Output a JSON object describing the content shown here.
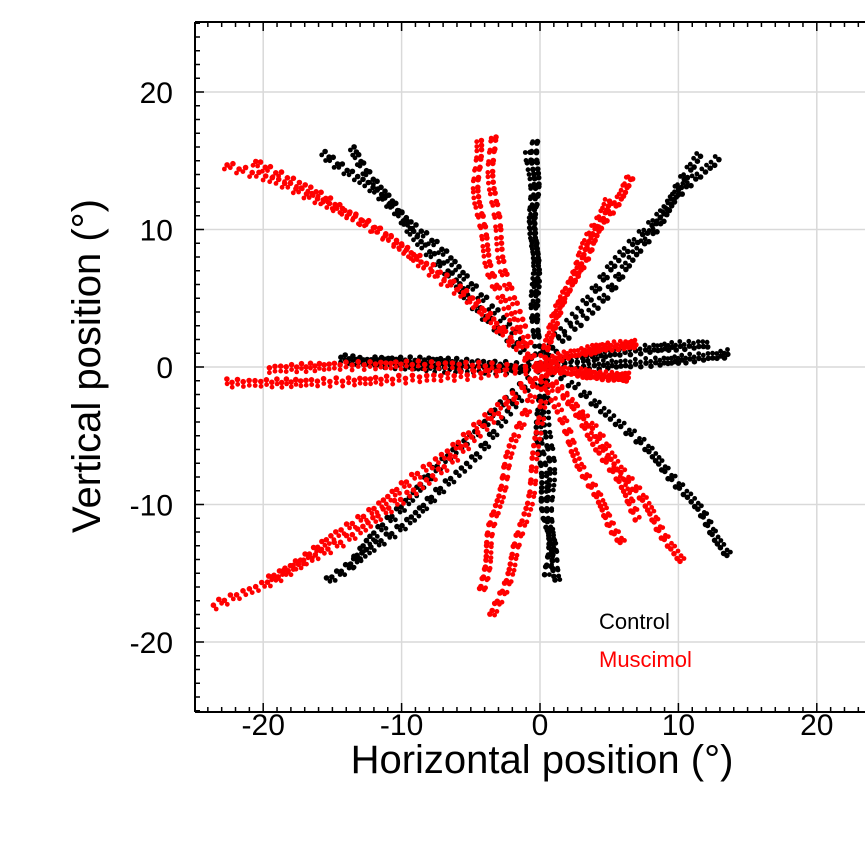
{
  "chart_data": {
    "type": "scatter",
    "xlabel": "Horizontal position (°)",
    "ylabel": "Vertical position (°)",
    "xlim": [
      -25,
      24
    ],
    "ylim": [
      -25,
      25
    ],
    "xticks": [
      -20,
      -10,
      0,
      10,
      20
    ],
    "yticks": [
      -20,
      -10,
      0,
      10,
      20
    ],
    "xtick_labels": [
      "-20",
      "-10",
      "0",
      "10",
      "20"
    ],
    "ytick_labels": [
      "-20",
      "-10",
      "0",
      "10",
      "20"
    ],
    "grid": true,
    "legend": "bottom-right (inside)",
    "series": [
      {
        "name": "Control",
        "color": "#000000",
        "trajectories": [
          {
            "end": [
              -15.5,
              15.6
            ],
            "bend": -1.0,
            "n": 45
          },
          {
            "end": [
              -13.5,
              16.0
            ],
            "bend": 0.6,
            "n": 45
          },
          {
            "end": [
              -0.1,
              16.5
            ],
            "bend": 0.2,
            "n": 40
          },
          {
            "end": [
              -0.6,
              15.5
            ],
            "bend": -0.1,
            "n": 35
          },
          {
            "end": [
              11.5,
              15.3
            ],
            "bend": -0.8,
            "n": 40
          },
          {
            "end": [
              12.8,
              15.0
            ],
            "bend": 0.6,
            "n": 40
          },
          {
            "end": [
              13.5,
              0.8
            ],
            "bend": -0.3,
            "n": 40
          },
          {
            "end": [
              12.0,
              1.5
            ],
            "bend": 0.2,
            "n": 35
          },
          {
            "end": [
              13.5,
              -13.8
            ],
            "bend": 1.2,
            "n": 45
          },
          {
            "end": [
              1.2,
              -15.5
            ],
            "bend": -0.6,
            "n": 40
          },
          {
            "end": [
              0.4,
              -15.0
            ],
            "bend": 0.4,
            "n": 35
          },
          {
            "end": [
              -15.5,
              -15.4
            ],
            "bend": 1.2,
            "n": 45
          },
          {
            "end": [
              -13.8,
              -14.2
            ],
            "bend": -0.3,
            "n": 40
          },
          {
            "end": [
              -14.5,
              0.8
            ],
            "bend": 0.3,
            "n": 40
          },
          {
            "end": [
              -12.0,
              0.6
            ],
            "bend": -0.2,
            "n": 35
          }
        ]
      },
      {
        "name": "Muscimol",
        "color": "#ff0000",
        "trajectories": [
          {
            "end": [
              -22.5,
              14.8
            ],
            "bend": -2.0,
            "n": 50
          },
          {
            "end": [
              -20.5,
              15.0
            ],
            "bend": -1.2,
            "n": 50
          },
          {
            "end": [
              -4.3,
              16.5
            ],
            "bend": 1.5,
            "n": 40
          },
          {
            "end": [
              -3.3,
              16.8
            ],
            "bend": 1.0,
            "n": 35
          },
          {
            "end": [
              6.8,
              13.8
            ],
            "bend": 0.5,
            "n": 40
          },
          {
            "end": [
              5.0,
              12.0
            ],
            "bend": 0.2,
            "n": 35
          },
          {
            "end": [
              7.0,
              1.5
            ],
            "bend": 0.3,
            "n": 35
          },
          {
            "end": [
              6.5,
              -0.9
            ],
            "bend": -0.2,
            "n": 35
          },
          {
            "end": [
              10.0,
              -14.2
            ],
            "bend": 0.4,
            "n": 40
          },
          {
            "end": [
              5.8,
              -12.8
            ],
            "bend": -0.4,
            "n": 35
          },
          {
            "end": [
              7.0,
              -11.0
            ],
            "bend": 0.3,
            "n": 30
          },
          {
            "end": [
              -4.3,
              -16.2
            ],
            "bend": -0.6,
            "n": 40
          },
          {
            "end": [
              -3.5,
              -18.0
            ],
            "bend": 0.9,
            "n": 40
          },
          {
            "end": [
              -23.5,
              -17.2
            ],
            "bend": 1.8,
            "n": 55
          },
          {
            "end": [
              -19.5,
              -15.3
            ],
            "bend": 0.6,
            "n": 50
          },
          {
            "end": [
              -22.5,
              -1.0
            ],
            "bend": 0.3,
            "n": 50
          },
          {
            "end": [
              -19.5,
              0.0
            ],
            "bend": -0.3,
            "n": 45
          }
        ]
      }
    ]
  },
  "legend": {
    "items": [
      {
        "label": "Control",
        "color": "#000000"
      },
      {
        "label": "Muscimol",
        "color": "#ff0000"
      }
    ]
  },
  "colors": {
    "grid": "#d9d9d9",
    "axis": "#000000",
    "background": "#ffffff"
  }
}
